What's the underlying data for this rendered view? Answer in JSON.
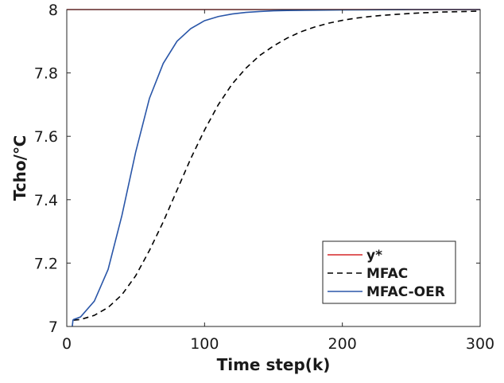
{
  "chart_data": {
    "type": "line",
    "xlabel": "Time step(k)",
    "ylabel": "Tcho/℃",
    "xlim": [
      0,
      300
    ],
    "ylim": [
      7,
      8
    ],
    "xticks": [
      0,
      100,
      200,
      300
    ],
    "yticks": [
      7,
      7.2,
      7.4,
      7.6,
      7.8,
      8
    ],
    "ytick_labels": [
      "7",
      "7.2",
      "7.4",
      "7.6",
      "7.8",
      "8"
    ],
    "grid": false,
    "legend_position": "bottom-right",
    "series": [
      {
        "name": "y*",
        "color": "#d62728",
        "dash": "solid",
        "x": [
          0,
          300
        ],
        "y": [
          8,
          8
        ]
      },
      {
        "name": "MFAC",
        "color": "#000000",
        "dash": "dashed",
        "x": [
          5,
          10,
          20,
          30,
          40,
          50,
          60,
          70,
          80,
          90,
          100,
          110,
          120,
          130,
          140,
          150,
          160,
          170,
          180,
          190,
          200,
          210,
          220,
          230,
          240,
          250,
          260,
          270,
          280,
          290,
          300
        ],
        "y": [
          7.02,
          7.022,
          7.035,
          7.06,
          7.1,
          7.16,
          7.24,
          7.33,
          7.43,
          7.53,
          7.62,
          7.7,
          7.765,
          7.815,
          7.855,
          7.885,
          7.91,
          7.93,
          7.945,
          7.957,
          7.966,
          7.973,
          7.978,
          7.982,
          7.985,
          7.988,
          7.99,
          7.992,
          7.993,
          7.994,
          7.995
        ]
      },
      {
        "name": "MFAC-OER",
        "color": "#2a56a8",
        "dash": "solid",
        "x": [
          4,
          4.5,
          5,
          10,
          20,
          30,
          40,
          50,
          60,
          70,
          80,
          90,
          100,
          110,
          120,
          130,
          140,
          150,
          160,
          180,
          200,
          250,
          300
        ],
        "y": [
          7.0,
          7.02,
          7.022,
          7.03,
          7.08,
          7.18,
          7.35,
          7.55,
          7.72,
          7.83,
          7.9,
          7.94,
          7.965,
          7.978,
          7.986,
          7.991,
          7.994,
          7.996,
          7.997,
          7.998,
          7.999,
          8.0,
          8.0
        ]
      }
    ]
  }
}
